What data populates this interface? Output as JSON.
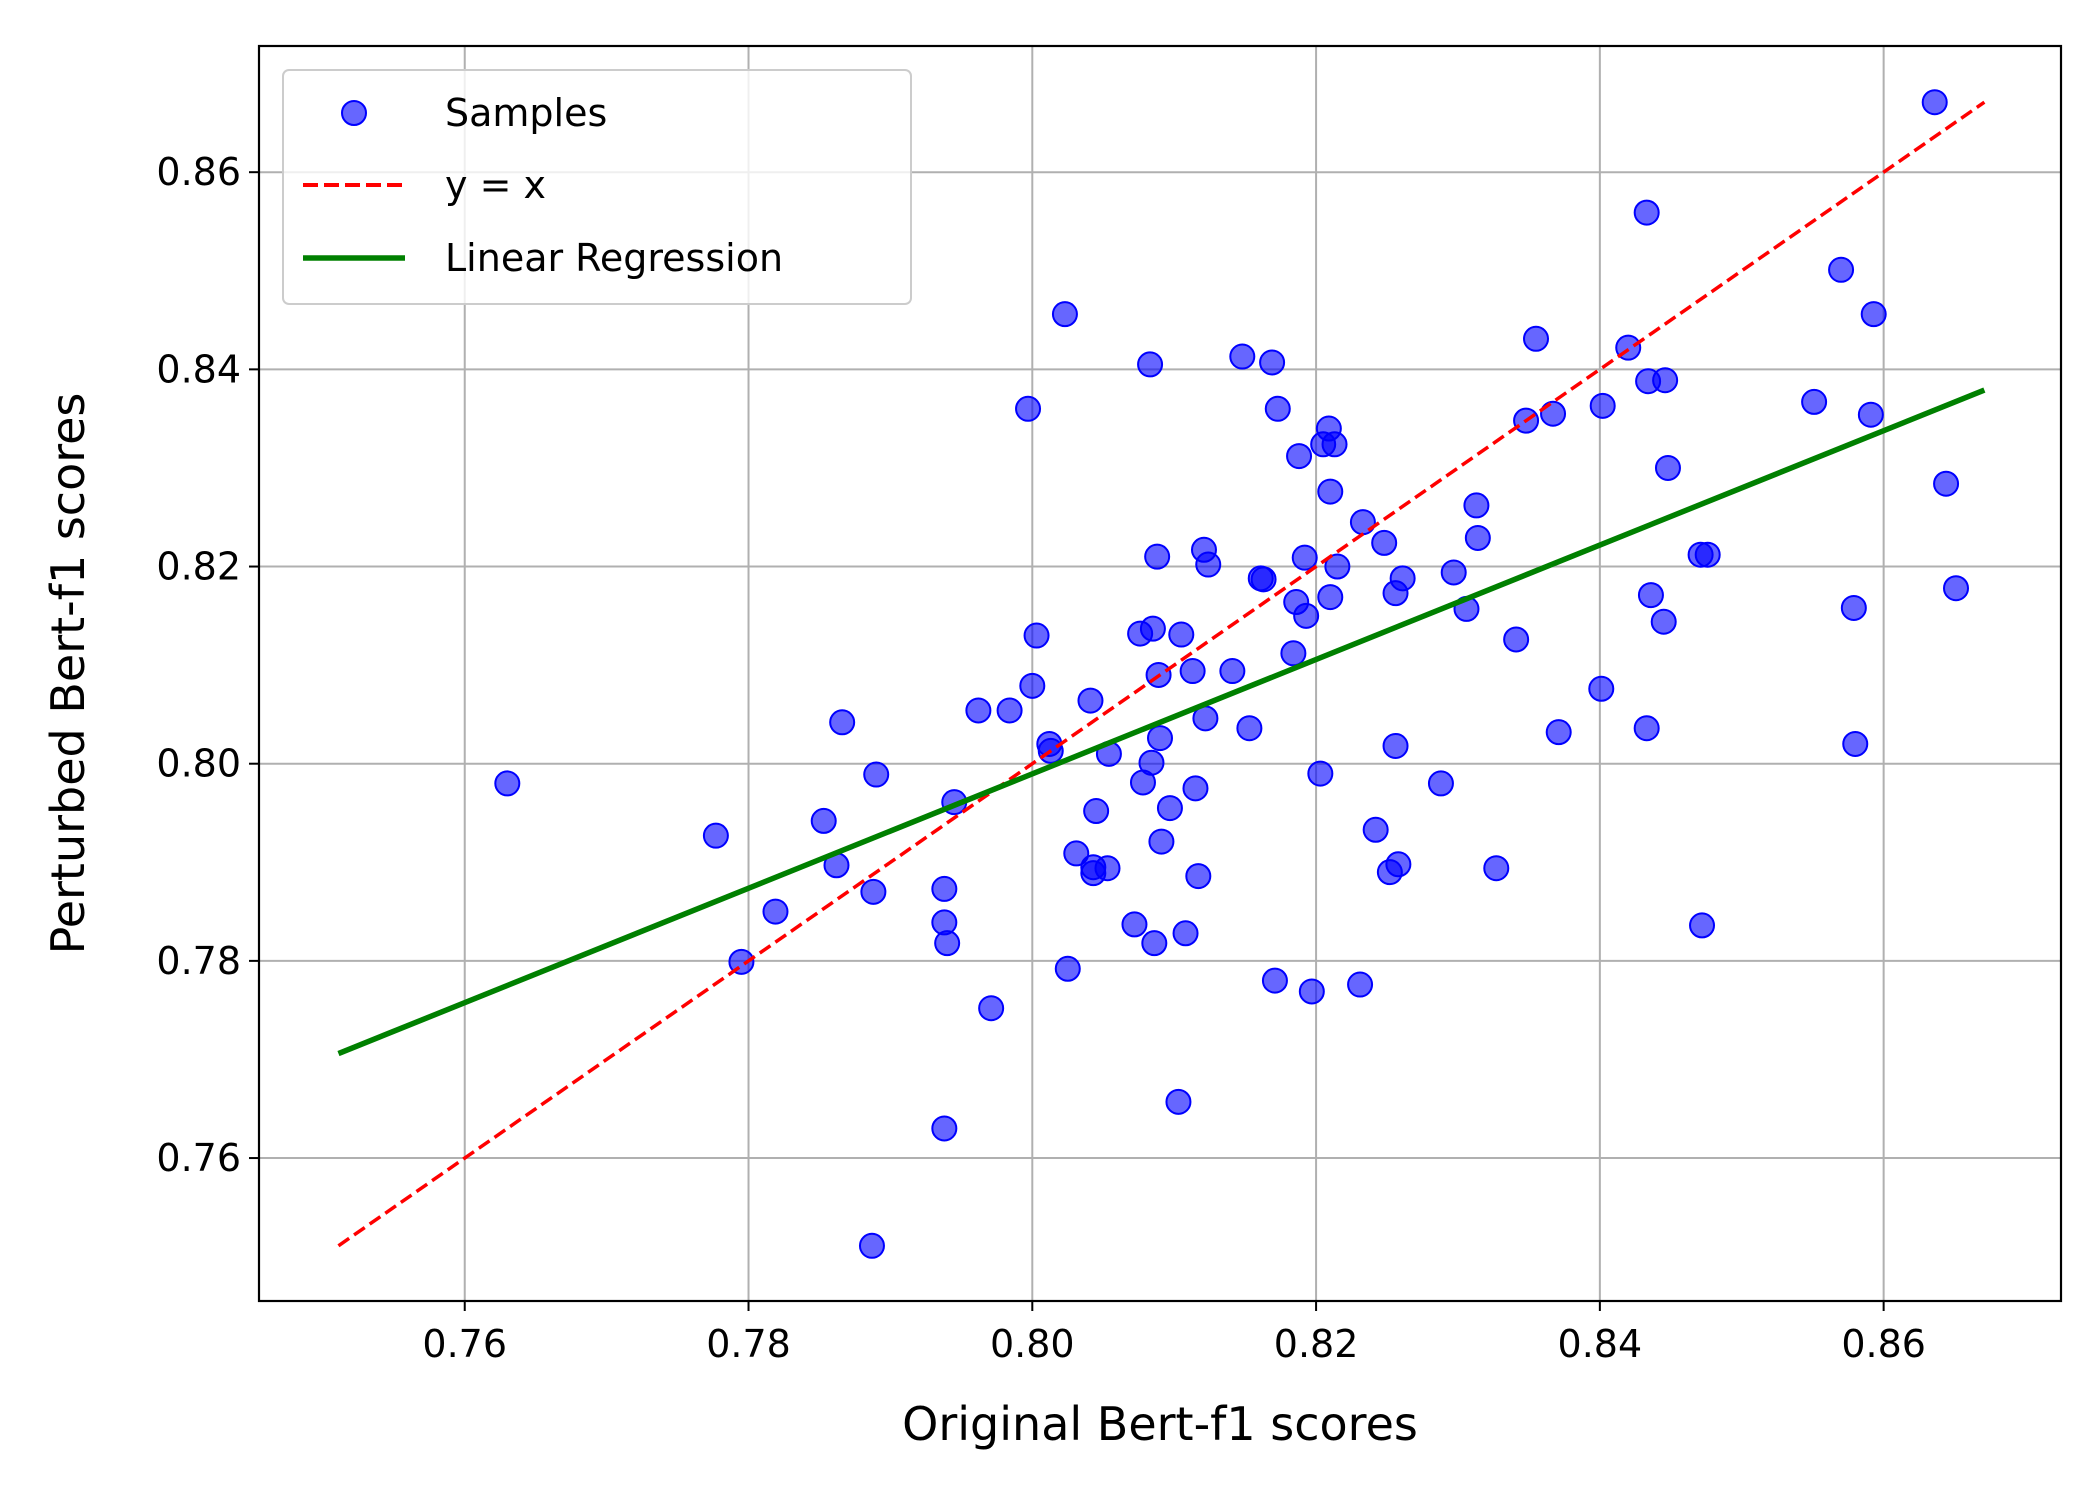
{
  "chart_data": {
    "type": "scatter",
    "xlabel": "Original Bert-f1 scores",
    "ylabel": "Perturbed Bert-f1 scores",
    "xlim": [
      0.7455,
      0.8725
    ],
    "ylim": [
      0.7455,
      0.8728
    ],
    "xticks": [
      0.76,
      0.78,
      0.8,
      0.82,
      0.84,
      0.86
    ],
    "yticks": [
      0.76,
      0.78,
      0.8,
      0.82,
      0.84,
      0.86
    ],
    "xtick_labels": [
      "0.76",
      "0.78",
      "0.80",
      "0.82",
      "0.84",
      "0.86"
    ],
    "ytick_labels": [
      "0.76",
      "0.78",
      "0.80",
      "0.82",
      "0.84",
      "0.86"
    ],
    "grid": true,
    "legend_position": "top-left",
    "legend": [
      "Samples",
      "y = x",
      "Linear Regression"
    ],
    "colors": {
      "samples": "#0000ff",
      "identity": "#ff0000",
      "regression": "#008000"
    },
    "identity_line": {
      "x": [
        0.7511,
        0.8671
      ],
      "y": [
        0.7511,
        0.8671
      ]
    },
    "regression_line": {
      "x": [
        0.7511,
        0.8671
      ],
      "y": [
        0.7706,
        0.8379
      ]
    },
    "series": [
      {
        "name": "Samples",
        "points": [
          [
            0.763,
            0.798
          ],
          [
            0.7777,
            0.7927
          ],
          [
            0.7795,
            0.7799
          ],
          [
            0.7819,
            0.785
          ],
          [
            0.7853,
            0.7942
          ],
          [
            0.7862,
            0.7897
          ],
          [
            0.7866,
            0.8042
          ],
          [
            0.7887,
            0.7511
          ],
          [
            0.7888,
            0.787
          ],
          [
            0.789,
            0.7989
          ],
          [
            0.7938,
            0.763
          ],
          [
            0.7938,
            0.7873
          ],
          [
            0.7938,
            0.7839
          ],
          [
            0.794,
            0.7818
          ],
          [
            0.7945,
            0.7961
          ],
          [
            0.7962,
            0.8054
          ],
          [
            0.7971,
            0.7752
          ],
          [
            0.7984,
            0.8054
          ],
          [
            0.7997,
            0.836
          ],
          [
            0.8,
            0.8079
          ],
          [
            0.8003,
            0.813
          ],
          [
            0.8012,
            0.802
          ],
          [
            0.8013,
            0.8013
          ],
          [
            0.8023,
            0.8456
          ],
          [
            0.8025,
            0.7792
          ],
          [
            0.8031,
            0.7909
          ],
          [
            0.8041,
            0.8064
          ],
          [
            0.8043,
            0.7889
          ],
          [
            0.8043,
            0.7895
          ],
          [
            0.8045,
            0.7952
          ],
          [
            0.8053,
            0.7894
          ],
          [
            0.8054,
            0.801
          ],
          [
            0.8072,
            0.7837
          ],
          [
            0.8076,
            0.8132
          ],
          [
            0.8078,
            0.7981
          ],
          [
            0.8083,
            0.8405
          ],
          [
            0.8084,
            0.8001
          ],
          [
            0.8085,
            0.8137
          ],
          [
            0.8086,
            0.7818
          ],
          [
            0.8088,
            0.821
          ],
          [
            0.8089,
            0.809
          ],
          [
            0.809,
            0.8026
          ],
          [
            0.8091,
            0.7921
          ],
          [
            0.8097,
            0.7955
          ],
          [
            0.8103,
            0.7657
          ],
          [
            0.8105,
            0.8131
          ],
          [
            0.8108,
            0.7828
          ],
          [
            0.8113,
            0.8094
          ],
          [
            0.8115,
            0.7975
          ],
          [
            0.8117,
            0.7886
          ],
          [
            0.8121,
            0.8217
          ],
          [
            0.8122,
            0.8046
          ],
          [
            0.8124,
            0.8202
          ],
          [
            0.8141,
            0.8094
          ],
          [
            0.8148,
            0.8413
          ],
          [
            0.8153,
            0.8036
          ],
          [
            0.8161,
            0.8188
          ],
          [
            0.8163,
            0.8187
          ],
          [
            0.8169,
            0.8407
          ],
          [
            0.8171,
            0.778
          ],
          [
            0.8173,
            0.836
          ],
          [
            0.8184,
            0.8112
          ],
          [
            0.8186,
            0.8164
          ],
          [
            0.8188,
            0.8312
          ],
          [
            0.8192,
            0.8209
          ],
          [
            0.8193,
            0.815
          ],
          [
            0.8197,
            0.7769
          ],
          [
            0.8203,
            0.799
          ],
          [
            0.8205,
            0.8324
          ],
          [
            0.8209,
            0.834
          ],
          [
            0.821,
            0.8276
          ],
          [
            0.821,
            0.8169
          ],
          [
            0.8213,
            0.8324
          ],
          [
            0.8215,
            0.82
          ],
          [
            0.8231,
            0.7776
          ],
          [
            0.8233,
            0.8245
          ],
          [
            0.8242,
            0.7933
          ],
          [
            0.8248,
            0.8224
          ],
          [
            0.8252,
            0.789
          ],
          [
            0.8256,
            0.8173
          ],
          [
            0.8256,
            0.8018
          ],
          [
            0.8258,
            0.7898
          ],
          [
            0.8261,
            0.8188
          ],
          [
            0.8288,
            0.798
          ],
          [
            0.8297,
            0.8194
          ],
          [
            0.8306,
            0.8157
          ],
          [
            0.8313,
            0.8262
          ],
          [
            0.8314,
            0.8229
          ],
          [
            0.8327,
            0.7894
          ],
          [
            0.8341,
            0.8126
          ],
          [
            0.8348,
            0.8348
          ],
          [
            0.8355,
            0.8431
          ],
          [
            0.8367,
            0.8355
          ],
          [
            0.8371,
            0.8032
          ],
          [
            0.8401,
            0.8076
          ],
          [
            0.8402,
            0.8363
          ],
          [
            0.842,
            0.8422
          ],
          [
            0.8433,
            0.8036
          ],
          [
            0.8433,
            0.8559
          ],
          [
            0.8434,
            0.8388
          ],
          [
            0.8436,
            0.8171
          ],
          [
            0.8445,
            0.8144
          ],
          [
            0.8446,
            0.8389
          ],
          [
            0.8448,
            0.83
          ],
          [
            0.8471,
            0.8212
          ],
          [
            0.8472,
            0.7836
          ],
          [
            0.8476,
            0.8212
          ],
          [
            0.8551,
            0.8367
          ],
          [
            0.857,
            0.8501
          ],
          [
            0.8579,
            0.8158
          ],
          [
            0.858,
            0.802
          ],
          [
            0.8591,
            0.8354
          ],
          [
            0.8593,
            0.8456
          ],
          [
            0.8636,
            0.8671
          ],
          [
            0.8644,
            0.8284
          ],
          [
            0.8651,
            0.8178
          ]
        ]
      }
    ]
  }
}
